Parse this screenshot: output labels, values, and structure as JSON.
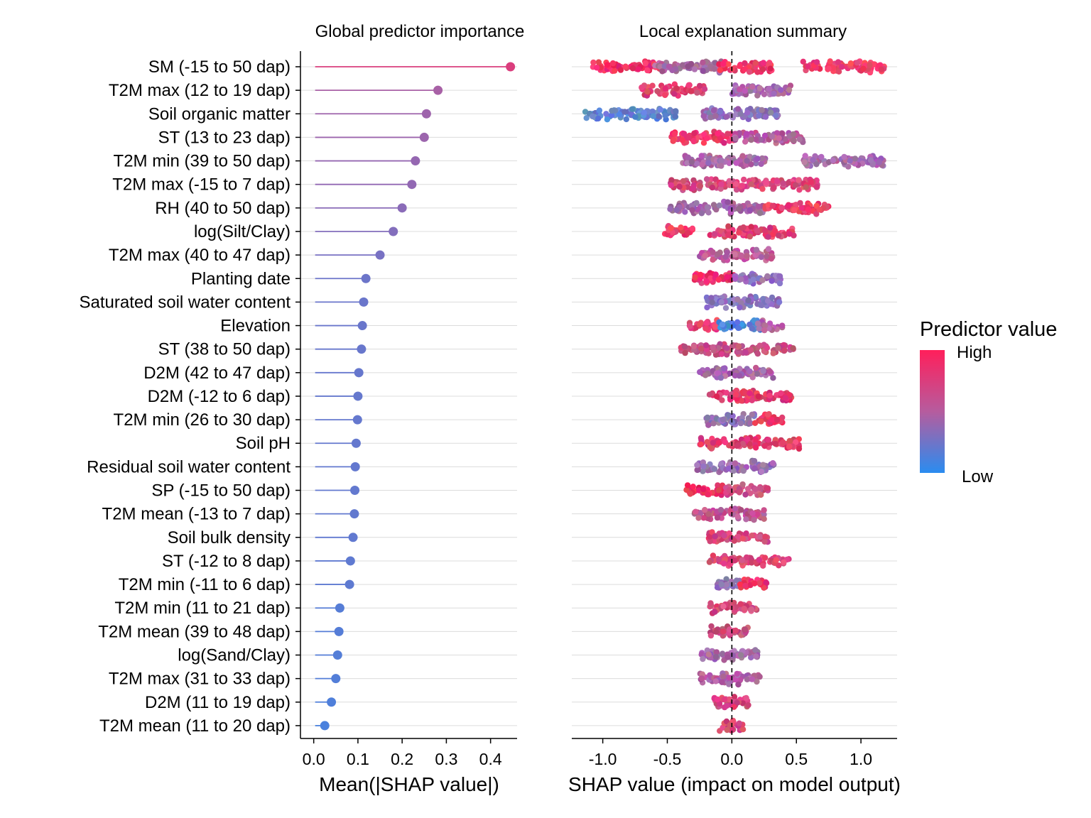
{
  "chart_data": [
    {
      "type": "lollipop",
      "title": "Global predictor importance",
      "xlabel": "Mean(|SHAP value|)",
      "ylabel": "",
      "xlim": [
        -0.03,
        0.46
      ],
      "xticks": [
        0.0,
        0.1,
        0.2,
        0.3,
        0.4
      ],
      "xtick_labels": [
        "0.0",
        "0.1",
        "0.2",
        "0.3",
        "0.4"
      ],
      "grid": "horizontal",
      "categories": [
        "SM (-15 to 50 dap)",
        "T2M max (12 to 19 dap)",
        "Soil organic matter",
        "ST (13 to 23 dap)",
        "T2M min (39 to 50 dap)",
        "T2M max (-15 to 7 dap)",
        "RH (40 to 50 dap)",
        "log(Silt/Clay)",
        "T2M max (40 to 47 dap)",
        "Planting date",
        "Saturated soil water content",
        "Elevation",
        "ST (38 to 50 dap)",
        "D2M (42 to 47 dap)",
        "D2M (-12 to 6 dap)",
        "T2M min (26 to 30 dap)",
        "Soil pH",
        "Residual soil water content",
        "SP (-15 to 50 dap)",
        "T2M mean (-13 to 7 dap)",
        "Soil bulk density",
        "ST (-12 to 8 dap)",
        "T2M min (-11 to 6 dap)",
        "T2M min (11 to 21 dap)",
        "T2M mean (39 to 48 dap)",
        "log(Sand/Clay)",
        "T2M max (31 to 33 dap)",
        "D2M (11 to 19 dap)",
        "T2M mean (11 to 20 dap)"
      ],
      "values": [
        0.445,
        0.281,
        0.255,
        0.25,
        0.23,
        0.222,
        0.2,
        0.18,
        0.15,
        0.118,
        0.113,
        0.11,
        0.108,
        0.102,
        0.1,
        0.099,
        0.096,
        0.094,
        0.093,
        0.092,
        0.089,
        0.083,
        0.081,
        0.059,
        0.057,
        0.054,
        0.05,
        0.04,
        0.025
      ]
    },
    {
      "type": "beeswarm",
      "title": "Local explanation summary",
      "xlabel": "SHAP value (impact on model output)",
      "xlim": [
        -1.24,
        1.28
      ],
      "xticks": [
        -1.0,
        -0.5,
        0.0,
        0.5,
        1.0
      ],
      "xtick_labels": [
        "-1.0",
        "-0.5",
        "0.0",
        "0.5",
        "1.0"
      ],
      "reference_line": 0.0,
      "grid": "horizontal",
      "color_scale": {
        "title": "Predictor value",
        "high_label": "High",
        "low_label": "Low",
        "high_color": "#ff1f5b",
        "mid_color": "#b65c9e",
        "low_color": "#2a8cf0"
      },
      "series": [
        {
          "name": "SM (-15 to 50 dap)",
          "segments": [
            {
              "min": -1.08,
              "max": -0.55,
              "color": "#f03466"
            },
            {
              "min": -0.6,
              "max": -0.05,
              "color": "#a8679f"
            },
            {
              "min": -0.1,
              "max": 0.32,
              "color": "#ef3669"
            },
            {
              "min": 0.55,
              "max": 1.18,
              "color": "#f33c6a"
            }
          ]
        },
        {
          "name": "T2M max (12 to 19 dap)",
          "segments": [
            {
              "min": -0.7,
              "max": -0.2,
              "color": "#e0416f"
            },
            {
              "min": 0.0,
              "max": 0.46,
              "color": "#a768a8"
            }
          ]
        },
        {
          "name": "Soil organic matter",
          "segments": [
            {
              "min": -1.15,
              "max": -0.42,
              "color": "#5f82cf"
            },
            {
              "min": -0.22,
              "max": 0.38,
              "color": "#8f72b4"
            }
          ]
        },
        {
          "name": "ST (13 to 23 dap)",
          "segments": [
            {
              "min": -0.48,
              "max": 0.02,
              "color": "#ec3a6a"
            },
            {
              "min": 0.02,
              "max": 0.55,
              "color": "#b65c9e"
            }
          ]
        },
        {
          "name": "T2M min (39 to 50 dap)",
          "segments": [
            {
              "min": -0.38,
              "max": 0.28,
              "color": "#a86aa6"
            },
            {
              "min": 0.55,
              "max": 1.18,
              "color": "#a96aa9"
            }
          ]
        },
        {
          "name": "T2M max (-15 to 7 dap)",
          "segments": [
            {
              "min": -0.48,
              "max": 0.68,
              "color": "#d7487a"
            }
          ]
        },
        {
          "name": "RH (40 to 50 dap)",
          "segments": [
            {
              "min": -0.48,
              "max": 0.25,
              "color": "#a668a6"
            },
            {
              "min": 0.25,
              "max": 0.75,
              "color": "#ec3b69"
            }
          ]
        },
        {
          "name": "log(Silt/Clay)",
          "segments": [
            {
              "min": -0.52,
              "max": -0.3,
              "color": "#ee3766"
            },
            {
              "min": -0.17,
              "max": 0.48,
              "color": "#df416f"
            }
          ]
        },
        {
          "name": "T2M max (40 to 47 dap)",
          "segments": [
            {
              "min": -0.25,
              "max": 0.32,
              "color": "#b95c98"
            }
          ]
        },
        {
          "name": "Planting date",
          "segments": [
            {
              "min": -0.3,
              "max": 0.02,
              "color": "#f2336a"
            },
            {
              "min": 0.02,
              "max": 0.38,
              "color": "#946eb5"
            }
          ]
        },
        {
          "name": "Saturated soil water content",
          "segments": [
            {
              "min": -0.2,
              "max": 0.38,
              "color": "#8a74bb"
            }
          ]
        },
        {
          "name": "Elevation",
          "segments": [
            {
              "min": -0.33,
              "max": -0.1,
              "color": "#e43e70"
            },
            {
              "min": -0.1,
              "max": 0.22,
              "color": "#4f86d8"
            },
            {
              "min": 0.2,
              "max": 0.4,
              "color": "#b763a2"
            }
          ]
        },
        {
          "name": "ST (38 to 50 dap)",
          "segments": [
            {
              "min": -0.4,
              "max": 0.48,
              "color": "#c8507e"
            }
          ]
        },
        {
          "name": "D2M (42 to 47 dap)",
          "segments": [
            {
              "min": -0.25,
              "max": 0.32,
              "color": "#a964a6"
            }
          ]
        },
        {
          "name": "D2M (-12 to 6 dap)",
          "segments": [
            {
              "min": -0.18,
              "max": 0.48,
              "color": "#e13c6c"
            }
          ]
        },
        {
          "name": "T2M min (26 to 30 dap)",
          "segments": [
            {
              "min": -0.2,
              "max": 0.18,
              "color": "#8f72b5"
            },
            {
              "min": 0.18,
              "max": 0.4,
              "color": "#ef3768"
            }
          ]
        },
        {
          "name": "Soil pH",
          "segments": [
            {
              "min": -0.25,
              "max": 0.53,
              "color": "#e13d6c"
            }
          ]
        },
        {
          "name": "Residual soil water content",
          "segments": [
            {
              "min": -0.27,
              "max": 0.34,
              "color": "#9c6cb0"
            }
          ]
        },
        {
          "name": "SP (-15 to 50 dap)",
          "segments": [
            {
              "min": -0.36,
              "max": -0.05,
              "color": "#f02f62"
            },
            {
              "min": -0.05,
              "max": 0.28,
              "color": "#c8537f"
            }
          ]
        },
        {
          "name": "T2M mean (-13 to 7 dap)",
          "segments": [
            {
              "min": -0.3,
              "max": 0.25,
              "color": "#bf5690"
            }
          ]
        },
        {
          "name": "Soil bulk density",
          "segments": [
            {
              "min": -0.18,
              "max": 0.33,
              "color": "#d9477a"
            }
          ]
        },
        {
          "name": "ST (-12 to 8 dap)",
          "segments": [
            {
              "min": -0.18,
              "max": 0.45,
              "color": "#de4475"
            }
          ]
        },
        {
          "name": "T2M min (-11 to 6 dap)",
          "segments": [
            {
              "min": -0.12,
              "max": 0.06,
              "color": "#8f72b5"
            },
            {
              "min": 0.06,
              "max": 0.28,
              "color": "#ee3668"
            }
          ]
        },
        {
          "name": "T2M min (11 to 21 dap)",
          "segments": [
            {
              "min": -0.18,
              "max": 0.2,
              "color": "#d34a7c"
            }
          ]
        },
        {
          "name": "T2M mean (39 to 48 dap)",
          "segments": [
            {
              "min": -0.17,
              "max": 0.14,
              "color": "#c8507e"
            }
          ]
        },
        {
          "name": "log(Sand/Clay)",
          "segments": [
            {
              "min": -0.24,
              "max": 0.2,
              "color": "#a76aa9"
            }
          ]
        },
        {
          "name": "T2M max (31 to 33 dap)",
          "segments": [
            {
              "min": -0.25,
              "max": 0.22,
              "color": "#b360a2"
            }
          ]
        },
        {
          "name": "D2M (11 to 19 dap)",
          "segments": [
            {
              "min": -0.14,
              "max": 0.13,
              "color": "#d9477a"
            }
          ]
        },
        {
          "name": "T2M mean (11 to 20 dap)",
          "segments": [
            {
              "min": -0.1,
              "max": 0.1,
              "color": "#d9477a"
            }
          ]
        }
      ]
    }
  ]
}
